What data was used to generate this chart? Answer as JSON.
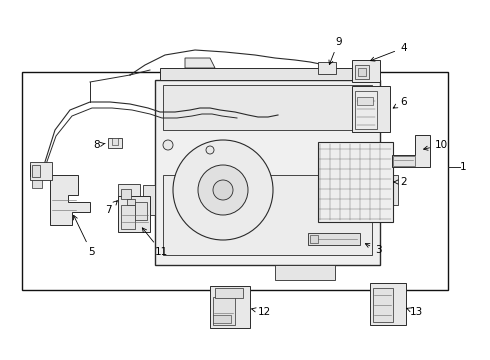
{
  "bg_color": "#ffffff",
  "fig_width": 4.9,
  "fig_height": 3.6,
  "dpi": 100,
  "lc": "#2a2a2a",
  "lc_light": "#666666",
  "fc_main": "#f2f2f2",
  "fc_part": "#e8e8e8",
  "fc_detail": "#d8d8d8"
}
